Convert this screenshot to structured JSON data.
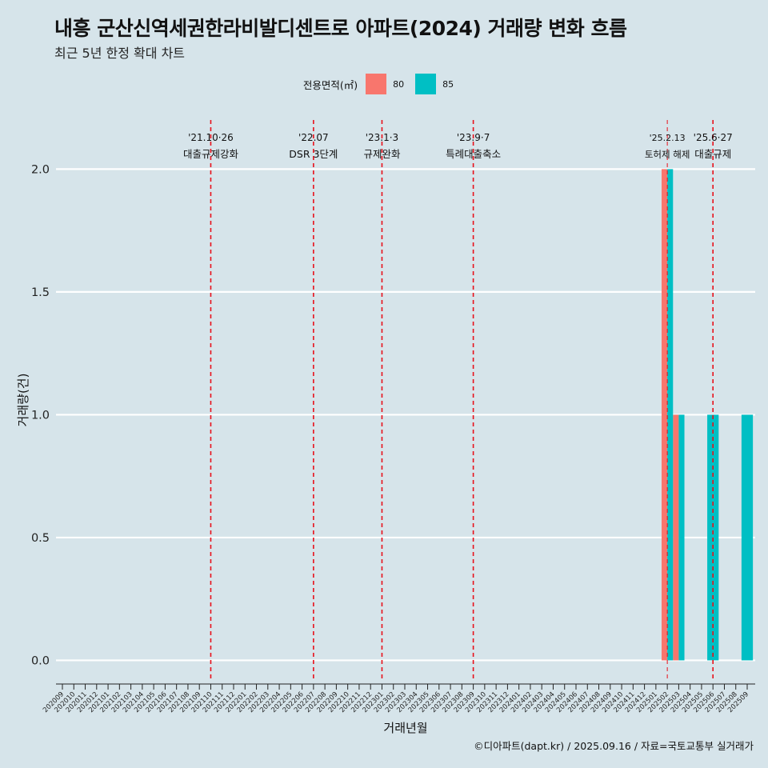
{
  "chart_data": {
    "type": "bar",
    "title": "내흥 군산신역세권한라비발디센트로 아파트(2024) 거래량 변화 흐름",
    "subtitle": "최근 5년 한정 확대 차트",
    "xlabel": "거래년월",
    "ylabel": "거래량(건)",
    "ylim": [
      -0.08,
      2.2
    ],
    "yticks": [
      "0.0",
      "0.5",
      "1.0",
      "1.5",
      "2.0"
    ],
    "legend_title": "전용면적(㎡)",
    "legend_position": "top-center",
    "colors": {
      "80": "#f8766d",
      "85": "#00bfc4",
      "vline": "#e8101a",
      "grid": "#ffffff"
    },
    "categories": [
      "202009",
      "202010",
      "202011",
      "202012",
      "202101",
      "202102",
      "202103",
      "202104",
      "202105",
      "202106",
      "202107",
      "202108",
      "202109",
      "202110",
      "202111",
      "202112",
      "202201",
      "202202",
      "202203",
      "202204",
      "202205",
      "202206",
      "202207",
      "202208",
      "202209",
      "202210",
      "202211",
      "202212",
      "202301",
      "202302",
      "202303",
      "202304",
      "202305",
      "202306",
      "202307",
      "202308",
      "202309",
      "202310",
      "202311",
      "202312",
      "202401",
      "202402",
      "202403",
      "202404",
      "202405",
      "202406",
      "202407",
      "202408",
      "202409",
      "202410",
      "202411",
      "202412",
      "202501",
      "202502",
      "202503",
      "202504",
      "202505",
      "202506",
      "202507",
      "202508",
      "202509"
    ],
    "series": [
      {
        "name": "80",
        "values": [
          {
            "x": "202502",
            "y": 2
          },
          {
            "x": "202503",
            "y": 1
          }
        ]
      },
      {
        "name": "85",
        "values": [
          {
            "x": "202502",
            "y": 2
          },
          {
            "x": "202503",
            "y": 1
          },
          {
            "x": "202506",
            "y": 1
          },
          {
            "x": "202509",
            "y": 1
          }
        ]
      }
    ],
    "annotations": [
      {
        "x": "202110",
        "date": "'21.10·26",
        "label": "대출규제강화"
      },
      {
        "x": "202207",
        "date": "'22.07",
        "label": "DSR 3단계"
      },
      {
        "x": "202301",
        "date": "'23.1·3",
        "label": "규제완화"
      },
      {
        "x": "202309",
        "date": "'23.9·7",
        "label": "특례대출축소"
      },
      {
        "x": "202502",
        "date": "'25.2.13",
        "label": "토허제 해제"
      },
      {
        "x": "202506",
        "date": "'25.6·27",
        "label": "대출규제"
      }
    ]
  },
  "caption": "©디아파트(dapt.kr) / 2025.09.16 / 자료=국토교통부 실거래가"
}
